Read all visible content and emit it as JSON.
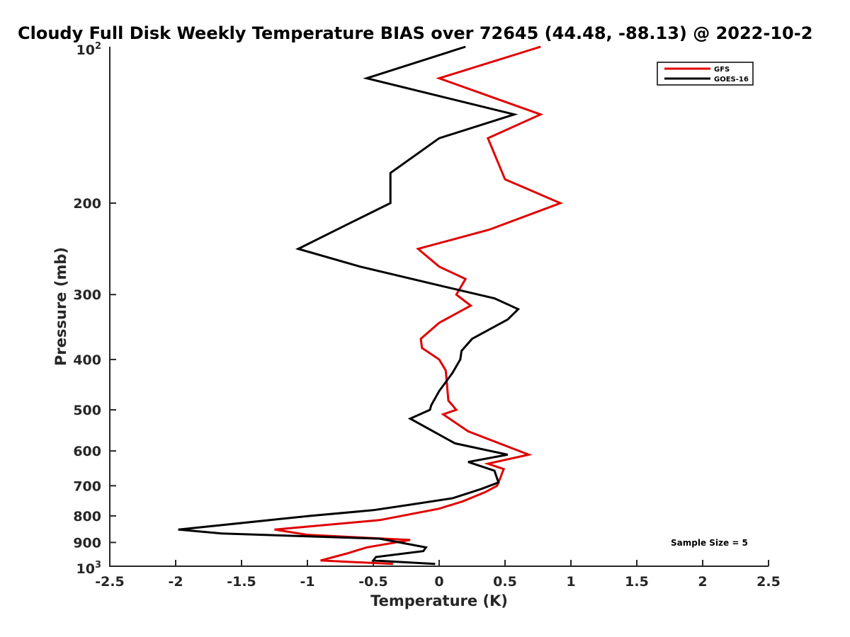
{
  "chart_data": {
    "type": "line",
    "title": "Cloudy Full Disk Weekly Temperature BIAS over 72645 (44.48, -88.13) @ 2022-10-2",
    "xlabel": "Temperature (K)",
    "ylabel": "Pressure (mb)",
    "xlim": [
      -2.5,
      2.5
    ],
    "ylim": [
      100,
      1000
    ],
    "y_scale": "log",
    "y_reversed": true,
    "x_ticks": [
      -2.5,
      -2,
      -1.5,
      -1,
      -0.5,
      0,
      0.5,
      1,
      1.5,
      2,
      2.5
    ],
    "x_tick_labels": [
      "-2.5",
      "-2",
      "-1.5",
      "-1",
      "-0.5",
      "0",
      "0.5",
      "1",
      "1.5",
      "2",
      "2.5"
    ],
    "y_ticks": [
      200,
      300,
      400,
      500,
      600,
      700,
      800,
      900
    ],
    "y_tick_labels": [
      "200",
      "300",
      "400",
      "500",
      "600",
      "700",
      "800",
      "900"
    ],
    "y_top_label": {
      "base": "10",
      "exp": "2"
    },
    "y_bottom_label": {
      "base": "10",
      "exp": "3"
    },
    "grid": false,
    "legend_position": "top-right",
    "annotation": "Sample Size = 5",
    "series": [
      {
        "name": "GFS",
        "color": "#e00000",
        "points": [
          [
            0.77,
            100
          ],
          [
            0.0,
            115
          ],
          [
            0.77,
            135
          ],
          [
            0.37,
            150
          ],
          [
            0.5,
            180
          ],
          [
            0.92,
            200
          ],
          [
            0.38,
            225
          ],
          [
            -0.16,
            245
          ],
          [
            0.0,
            265
          ],
          [
            0.2,
            280
          ],
          [
            0.13,
            300
          ],
          [
            0.24,
            315
          ],
          [
            0.0,
            340
          ],
          [
            -0.14,
            365
          ],
          [
            -0.13,
            380
          ],
          [
            0.0,
            400
          ],
          [
            0.05,
            420
          ],
          [
            0.07,
            480
          ],
          [
            0.13,
            500
          ],
          [
            0.03,
            510
          ],
          [
            0.22,
            550
          ],
          [
            0.68,
            610
          ],
          [
            0.37,
            635
          ],
          [
            0.49,
            650
          ],
          [
            0.46,
            680
          ],
          [
            0.44,
            700
          ],
          [
            0.35,
            720
          ],
          [
            0.18,
            750
          ],
          [
            0.0,
            775
          ],
          [
            -0.45,
            815
          ],
          [
            -1.25,
            850
          ],
          [
            -1.0,
            870
          ],
          [
            -0.22,
            890
          ],
          [
            -0.55,
            920
          ],
          [
            -0.7,
            945
          ],
          [
            -0.9,
            975
          ],
          [
            -0.35,
            990
          ]
        ]
      },
      {
        "name": "GOES-16",
        "color": "#000000",
        "points": [
          [
            0.2,
            100
          ],
          [
            -0.55,
            115
          ],
          [
            0.57,
            135
          ],
          [
            0.0,
            150
          ],
          [
            -0.37,
            175
          ],
          [
            -0.37,
            200
          ],
          [
            -0.7,
            220
          ],
          [
            -1.07,
            245
          ],
          [
            -0.6,
            265
          ],
          [
            0.05,
            290
          ],
          [
            0.42,
            305
          ],
          [
            0.6,
            320
          ],
          [
            0.52,
            335
          ],
          [
            0.25,
            365
          ],
          [
            0.17,
            385
          ],
          [
            0.16,
            400
          ],
          [
            0.1,
            425
          ],
          [
            0.0,
            460
          ],
          [
            -0.06,
            490
          ],
          [
            -0.07,
            500
          ],
          [
            -0.22,
            520
          ],
          [
            0.12,
            580
          ],
          [
            0.52,
            610
          ],
          [
            0.22,
            630
          ],
          [
            0.42,
            655
          ],
          [
            0.45,
            690
          ],
          [
            0.32,
            710
          ],
          [
            0.1,
            740
          ],
          [
            -0.2,
            760
          ],
          [
            -0.5,
            780
          ],
          [
            -0.98,
            800
          ],
          [
            -1.98,
            850
          ],
          [
            -1.65,
            865
          ],
          [
            -0.45,
            885
          ],
          [
            -0.1,
            920
          ],
          [
            -0.12,
            935
          ],
          [
            -0.48,
            960
          ],
          [
            -0.5,
            975
          ],
          [
            -0.03,
            990
          ]
        ]
      }
    ]
  }
}
